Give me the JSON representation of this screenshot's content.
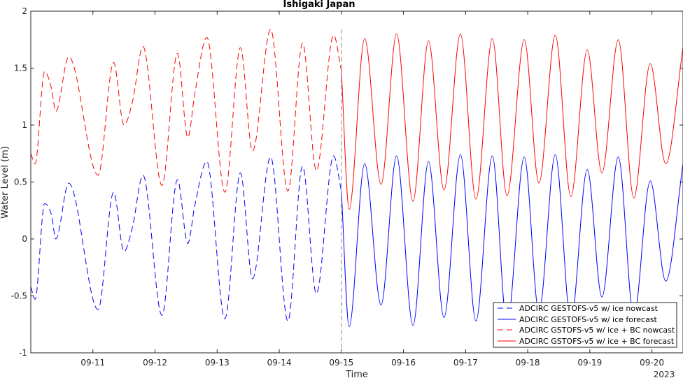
{
  "chart_data": {
    "type": "line",
    "title": "Ishigaki Japan",
    "xlabel": "Time",
    "ylabel": "Water Level (m)",
    "year_label": "2023",
    "xlim": [
      "2023-09-10 00:00",
      "2023-09-20 12:00"
    ],
    "ylim": [
      -1,
      2
    ],
    "yticks": [
      -1,
      -0.5,
      0,
      0.5,
      1,
      1.5,
      2
    ],
    "ytick_labels": [
      "-1",
      "-0.5",
      "0",
      "0.5",
      "1",
      "1.5",
      "2"
    ],
    "xticks": [
      "2023-09-11",
      "2023-09-12",
      "2023-09-13",
      "2023-09-14",
      "2023-09-15",
      "2023-09-16",
      "2023-09-17",
      "2023-09-18",
      "2023-09-19",
      "2023-09-20"
    ],
    "xtick_labels": [
      "09-11",
      "09-12",
      "09-13",
      "09-14",
      "09-15",
      "09-16",
      "09-17",
      "09-18",
      "09-19",
      "09-20"
    ],
    "nowcast_forecast_divider": "2023-09-15 00:00",
    "grid": false,
    "legend_position": "bottom-right",
    "series": [
      {
        "name": "ADCIRC GESTOFS-v5 w/ ice nowcast",
        "color": "#0000ff",
        "line_style": "dashed",
        "points": [
          [
            "09-10 00:00",
            -0.42
          ],
          [
            "09-10 01:40",
            -0.53
          ],
          [
            "09-10 05:20",
            0.31
          ],
          [
            "09-10 08:00",
            0.21
          ],
          [
            "09-10 09:40",
            0.0
          ],
          [
            "09-10 14:40",
            0.49
          ],
          [
            "09-11 02:00",
            -0.62
          ],
          [
            "09-11 08:00",
            0.41
          ],
          [
            "09-11 12:00",
            -0.11
          ],
          [
            "09-11 15:20",
            0.11
          ],
          [
            "09-11 19:20",
            0.56
          ],
          [
            "09-12 02:40",
            -0.67
          ],
          [
            "09-12 08:40",
            0.52
          ],
          [
            "09-12 12:40",
            -0.04
          ],
          [
            "09-12 15:20",
            0.29
          ],
          [
            "09-12 20:00",
            0.68
          ],
          [
            "09-13 03:00",
            -0.7
          ],
          [
            "09-13 09:00",
            0.58
          ],
          [
            "09-13 13:40",
            -0.35
          ],
          [
            "09-13 20:40",
            0.72
          ],
          [
            "09-14 03:20",
            -0.72
          ],
          [
            "09-14 09:00",
            0.64
          ],
          [
            "09-14 14:20",
            -0.48
          ],
          [
            "09-14 21:00",
            0.73
          ],
          [
            "09-15 00:00",
            0.42
          ]
        ]
      },
      {
        "name": "ADCIRC GESTOFS-v5 w/ ice forecast",
        "color": "#0000ff",
        "line_style": "solid",
        "points": [
          [
            "09-15 00:00",
            0.42
          ],
          [
            "09-15 03:00",
            -0.77
          ],
          [
            "09-15 09:00",
            0.66
          ],
          [
            "09-15 15:20",
            -0.58
          ],
          [
            "09-15 21:20",
            0.73
          ],
          [
            "09-16 03:40",
            -0.76
          ],
          [
            "09-16 09:40",
            0.68
          ],
          [
            "09-16 15:40",
            -0.69
          ],
          [
            "09-16 22:00",
            0.74
          ],
          [
            "09-17 04:00",
            -0.72
          ],
          [
            "09-17 10:20",
            0.73
          ],
          [
            "09-17 16:00",
            -0.75
          ],
          [
            "09-17 22:40",
            0.72
          ],
          [
            "09-18 04:20",
            -0.64
          ],
          [
            "09-18 10:40",
            0.74
          ],
          [
            "09-18 16:40",
            -0.72
          ],
          [
            "09-18 23:00",
            0.61
          ],
          [
            "09-19 04:40",
            -0.51
          ],
          [
            "09-19 11:00",
            0.72
          ],
          [
            "09-19 17:00",
            -0.68
          ],
          [
            "09-19 23:20",
            0.51
          ],
          [
            "09-20 05:20",
            -0.37
          ],
          [
            "09-20 12:00",
            0.66
          ]
        ]
      },
      {
        "name": "ADCIRC GSTOFS-v5 w/ ice + BC nowcast",
        "color": "#ff0000",
        "line_style": "dashed",
        "points": [
          [
            "09-10 00:00",
            0.75
          ],
          [
            "09-10 01:40",
            0.66
          ],
          [
            "09-10 05:20",
            1.47
          ],
          [
            "09-10 08:00",
            1.32
          ],
          [
            "09-10 09:40",
            1.12
          ],
          [
            "09-10 14:40",
            1.6
          ],
          [
            "09-11 02:00",
            0.56
          ],
          [
            "09-11 08:00",
            1.55
          ],
          [
            "09-11 12:00",
            1.0
          ],
          [
            "09-11 15:20",
            1.21
          ],
          [
            "09-11 19:20",
            1.69
          ],
          [
            "09-12 02:40",
            0.47
          ],
          [
            "09-12 08:40",
            1.63
          ],
          [
            "09-12 12:40",
            0.89
          ],
          [
            "09-12 15:20",
            1.27
          ],
          [
            "09-12 20:00",
            1.77
          ],
          [
            "09-13 03:00",
            0.41
          ],
          [
            "09-13 09:00",
            1.68
          ],
          [
            "09-13 13:40",
            0.77
          ],
          [
            "09-13 20:40",
            1.84
          ],
          [
            "09-14 03:20",
            0.42
          ],
          [
            "09-14 09:00",
            1.72
          ],
          [
            "09-14 14:20",
            0.6
          ],
          [
            "09-14 21:00",
            1.79
          ],
          [
            "09-15 00:00",
            1.48
          ]
        ]
      },
      {
        "name": "ADCIRC GSTOFS-v5 w/ ice + BC forecast",
        "color": "#ff0000",
        "line_style": "solid",
        "points": [
          [
            "09-15 00:00",
            1.48
          ],
          [
            "09-15 03:00",
            0.26
          ],
          [
            "09-15 09:00",
            1.76
          ],
          [
            "09-15 15:20",
            0.48
          ],
          [
            "09-15 21:20",
            1.8
          ],
          [
            "09-16 03:40",
            0.33
          ],
          [
            "09-16 09:40",
            1.74
          ],
          [
            "09-16 15:40",
            0.43
          ],
          [
            "09-16 22:00",
            1.8
          ],
          [
            "09-17 04:00",
            0.35
          ],
          [
            "09-17 10:20",
            1.76
          ],
          [
            "09-17 16:00",
            0.38
          ],
          [
            "09-17 22:40",
            1.75
          ],
          [
            "09-18 04:20",
            0.49
          ],
          [
            "09-18 10:40",
            1.79
          ],
          [
            "09-18 16:40",
            0.37
          ],
          [
            "09-18 23:00",
            1.66
          ],
          [
            "09-19 04:40",
            0.58
          ],
          [
            "09-19 11:00",
            1.75
          ],
          [
            "09-19 17:00",
            0.36
          ],
          [
            "09-19 23:20",
            1.54
          ],
          [
            "09-20 05:20",
            0.66
          ],
          [
            "09-20 12:00",
            1.68
          ]
        ]
      }
    ]
  }
}
